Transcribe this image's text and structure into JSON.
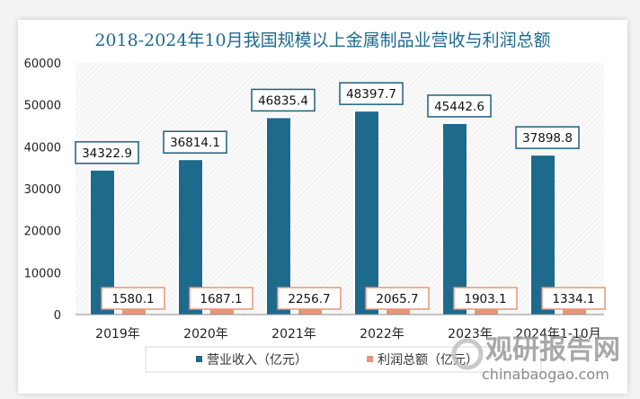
{
  "chart_data": {
    "type": "bar",
    "title": "2018-2024年10月我国规模以上金属制品业营收与利润总额",
    "categories": [
      "2019年",
      "2020年",
      "2021年",
      "2022年",
      "2023年",
      "2024年1-10月"
    ],
    "series": [
      {
        "name": "营业收入（亿元）",
        "color": "#1d6a8c",
        "values": [
          34322.9,
          36814.1,
          46835.4,
          48397.7,
          45442.6,
          37898.8
        ]
      },
      {
        "name": "利润总额（亿元）",
        "color": "#e8967a",
        "values": [
          1580.1,
          1687.1,
          2256.7,
          2065.7,
          1903.1,
          1334.1
        ]
      }
    ],
    "ylim": [
      0,
      60000
    ],
    "yticks": [
      0,
      10000,
      20000,
      30000,
      40000,
      50000,
      60000
    ],
    "legend": "bottom",
    "grid": false
  },
  "watermark": {
    "brand": "观研报告网",
    "url": "chinabaogao.com"
  }
}
